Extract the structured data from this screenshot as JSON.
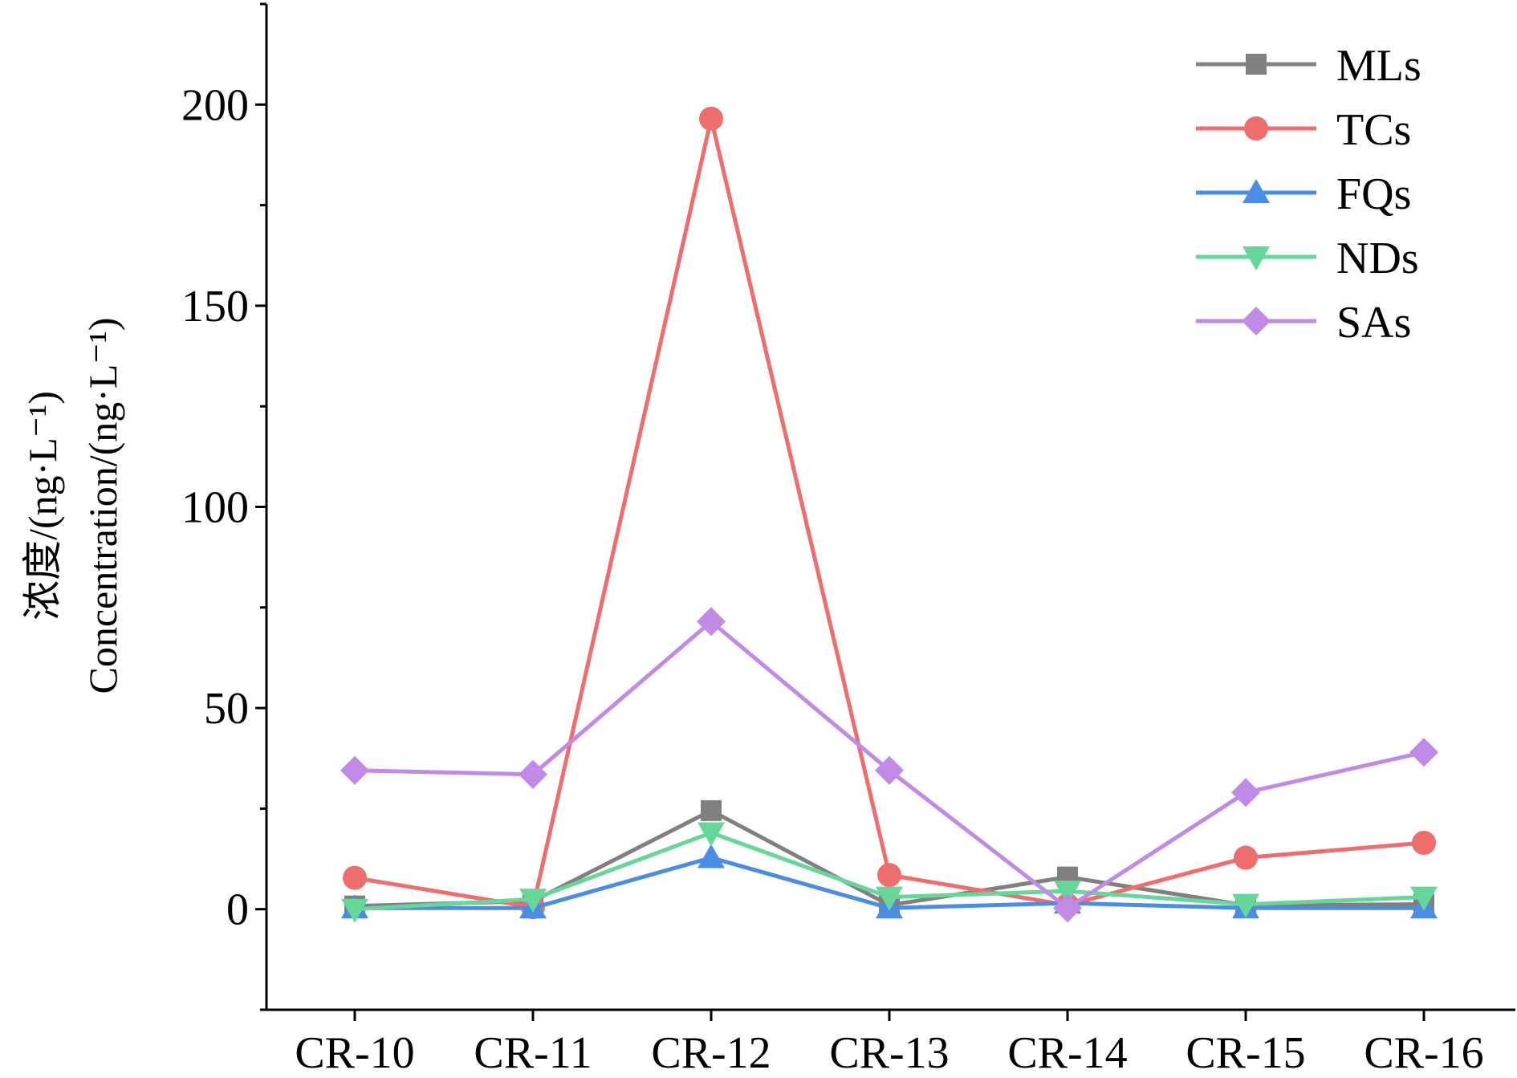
{
  "chart_data": {
    "type": "line",
    "title": "",
    "xlabel": "",
    "ylabel_lines": [
      "浓度/(ng·L⁻¹)",
      "Concentration/(ng·L⁻¹)"
    ],
    "categories": [
      "CR-10",
      "CR-11",
      "CR-12",
      "CR-13",
      "CR-14",
      "CR-15",
      "CR-16"
    ],
    "ylim": [
      -25,
      225
    ],
    "yticks": [
      0,
      50,
      100,
      150,
      200
    ],
    "grid": false,
    "legend_position": "top-right",
    "series": [
      {
        "name": "MLs",
        "marker": "square",
        "color": "#808080",
        "values": [
          0.8,
          2.0,
          24.5,
          1.0,
          8.0,
          1.0,
          1.2
        ]
      },
      {
        "name": "TCs",
        "marker": "circle",
        "color": "#ee6e6e",
        "values": [
          7.8,
          0.5,
          196.5,
          8.5,
          1.0,
          12.8,
          16.5
        ]
      },
      {
        "name": "FQs",
        "marker": "triangle-up",
        "color": "#4a8de6",
        "values": [
          0.3,
          0.3,
          12.8,
          0.3,
          1.5,
          0.3,
          0.3
        ]
      },
      {
        "name": "NDs",
        "marker": "triangle-down",
        "color": "#66d69a",
        "values": [
          0.0,
          2.5,
          19.0,
          3.0,
          4.5,
          1.2,
          3.0
        ]
      },
      {
        "name": "SAs",
        "marker": "diamond",
        "color": "#c08ae6",
        "values": [
          34.5,
          33.5,
          71.5,
          34.5,
          0.3,
          29.0,
          39.0
        ]
      }
    ]
  }
}
